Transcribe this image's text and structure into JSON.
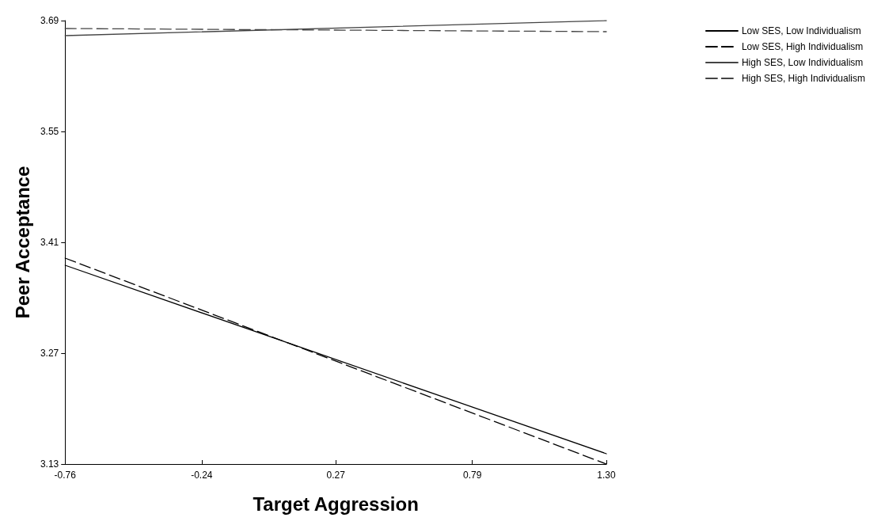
{
  "chart_data": {
    "type": "line",
    "xlabel": "Target Aggression",
    "ylabel": "Peer Acceptance",
    "x": [
      -0.76,
      1.3
    ],
    "series": [
      {
        "name": "Low SES, Low Individualism",
        "color": "#000000",
        "line_style": "solid",
        "values": [
          3.381,
          3.143
        ]
      },
      {
        "name": "Low SES, High Individualism",
        "color": "#000000",
        "line_style": "dashed",
        "values": [
          3.39,
          3.13
        ]
      },
      {
        "name": "High SES, Low Individualism",
        "color": "#444444",
        "line_style": "solid",
        "values": [
          3.671,
          3.69
        ]
      },
      {
        "name": "High SES, High Individualism",
        "color": "#444444",
        "line_style": "dashed",
        "values": [
          3.68,
          3.676
        ]
      }
    ],
    "xlim": [
      -0.76,
      1.3
    ],
    "xticks": [
      {
        "value": -0.76,
        "label": "-0.76"
      },
      {
        "value": -0.24,
        "label": "-0.24"
      },
      {
        "value": 0.27,
        "label": "0.27"
      },
      {
        "value": 0.79,
        "label": "0.79"
      },
      {
        "value": 1.3,
        "label": "1.30"
      }
    ],
    "ylim": [
      3.13,
      3.69
    ],
    "yticks": [
      3.13,
      3.27,
      3.41,
      3.55,
      3.69
    ],
    "grid": false,
    "legend": "top right",
    "marker": "none"
  }
}
